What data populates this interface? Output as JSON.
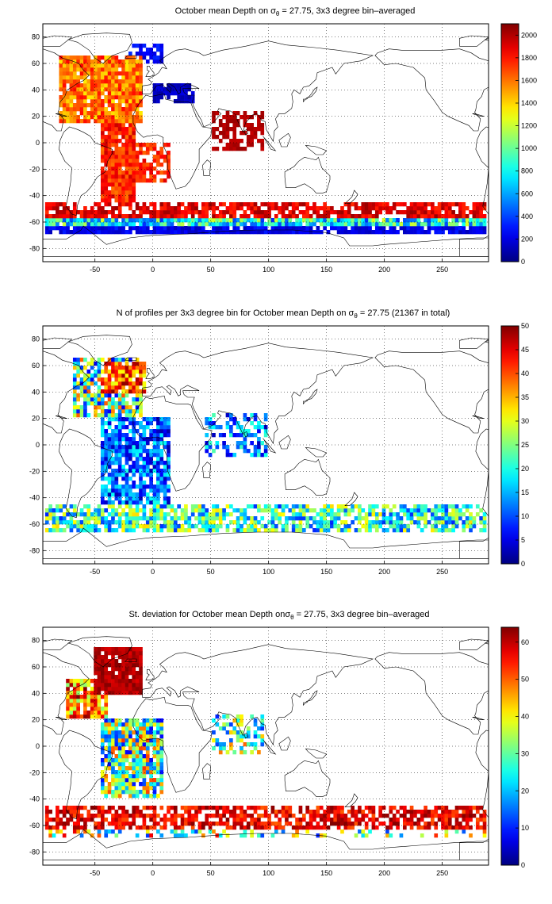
{
  "panels": [
    {
      "title_parts": [
        "October mean Depth on σ",
        "θ",
        " = 27.75, 3x3 degree bin–averaged"
      ],
      "colorbar": {
        "min": 0,
        "max": 2100,
        "ticks": [
          "0",
          "200",
          "400",
          "600",
          "800",
          "1000",
          "1200",
          "1400",
          "1600",
          "1800",
          "2000"
        ]
      }
    },
    {
      "title_parts": [
        "N of profiles per 3x3 degree bin for October mean Depth on σ",
        "θ",
        " = 27.75 (21367 in total)"
      ],
      "colorbar": {
        "min": 0,
        "max": 50,
        "ticks": [
          "0",
          "5",
          "10",
          "15",
          "20",
          "25",
          "30",
          "35",
          "40",
          "45",
          "50"
        ]
      }
    },
    {
      "title_parts": [
        "St. deviation for October mean Depth onσ",
        "θ",
        " = 27.75, 3x3 degree bin–averaged"
      ],
      "colorbar": {
        "min": 0,
        "max": 64,
        "ticks": [
          "0",
          "10",
          "20",
          "30",
          "40",
          "50",
          "60"
        ]
      }
    }
  ],
  "axes": {
    "x_ticks": [
      "-50",
      "0",
      "50",
      "100",
      "150",
      "200",
      "250"
    ],
    "y_ticks": [
      "80",
      "60",
      "40",
      "20",
      "0",
      "-20",
      "-40",
      "-60",
      "-80"
    ]
  },
  "chart_data": [
    {
      "type": "heatmap",
      "title": "October mean Depth on σθ = 27.75, 3x3 degree bin–averaged",
      "xlim": [
        -95,
        290
      ],
      "ylim": [
        -90,
        90
      ],
      "colorbar_range": [
        0,
        2100
      ],
      "grid": true,
      "regions": [
        {
          "lon": [
            -80,
            -10
          ],
          "lat": [
            15,
            65
          ],
          "value": 1550
        },
        {
          "lon": [
            -45,
            -15
          ],
          "lat": [
            -45,
            15
          ],
          "value": 1750
        },
        {
          "lon": [
            -15,
            15
          ],
          "lat": [
            -30,
            0
          ],
          "value": 1700
        },
        {
          "lon": [
            50,
            95
          ],
          "lat": [
            -5,
            25
          ],
          "value": 1950
        },
        {
          "lon": [
            0,
            35
          ],
          "lat": [
            30,
            45
          ],
          "value": 120
        },
        {
          "lon": [
            -20,
            10
          ],
          "lat": [
            60,
            75
          ],
          "value": 250
        },
        {
          "lon": [
            -80,
            290
          ],
          "lat": [
            -57,
            -45
          ],
          "value": 1850
        },
        {
          "lon": [
            -80,
            290
          ],
          "lat": [
            -63,
            -57
          ],
          "value": 700
        },
        {
          "lon": [
            -80,
            290
          ],
          "lat": [
            -70,
            -63
          ],
          "value": 150
        }
      ]
    },
    {
      "type": "heatmap",
      "title": "N of profiles per 3x3 degree bin for October mean Depth on σθ = 27.75 (21367 in total)",
      "xlim": [
        -95,
        290
      ],
      "ylim": [
        -90,
        90
      ],
      "colorbar_range": [
        0,
        50
      ],
      "grid": true,
      "regions": [
        {
          "lon": [
            -70,
            -10
          ],
          "lat": [
            20,
            65
          ],
          "value": 25
        },
        {
          "lon": [
            -45,
            -5
          ],
          "lat": [
            40,
            62
          ],
          "value": 45
        },
        {
          "lon": [
            -45,
            15
          ],
          "lat": [
            -45,
            20
          ],
          "value": 10
        },
        {
          "lon": [
            45,
            100
          ],
          "lat": [
            -10,
            25
          ],
          "value": 10
        },
        {
          "lon": [
            -80,
            290
          ],
          "lat": [
            -65,
            -45
          ],
          "value": 18
        }
      ]
    },
    {
      "type": "heatmap",
      "title": "St. deviation for October mean Depth onσθ = 27.75, 3x3 degree bin–averaged",
      "xlim": [
        -95,
        290
      ],
      "ylim": [
        -90,
        90
      ],
      "colorbar_range": [
        0,
        64
      ],
      "grid": true,
      "regions": [
        {
          "lon": [
            -50,
            -10
          ],
          "lat": [
            40,
            75
          ],
          "value": 63
        },
        {
          "lon": [
            -75,
            -40
          ],
          "lat": [
            20,
            50
          ],
          "value": 55
        },
        {
          "lon": [
            -45,
            10
          ],
          "lat": [
            -40,
            20
          ],
          "value": 30
        },
        {
          "lon": [
            50,
            95
          ],
          "lat": [
            -5,
            25
          ],
          "value": 25
        },
        {
          "lon": [
            -80,
            290
          ],
          "lat": [
            -62,
            -45
          ],
          "value": 63
        }
      ]
    }
  ]
}
